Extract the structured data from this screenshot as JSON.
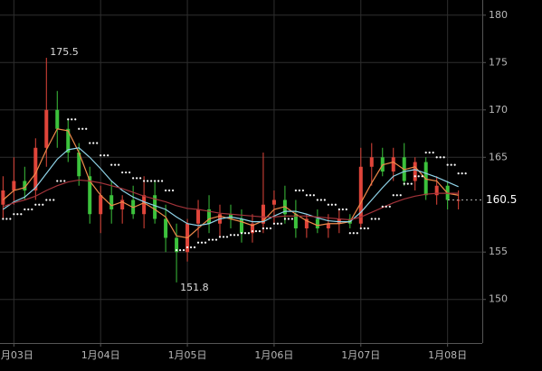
{
  "chart_data": {
    "type": "candlestick",
    "xlim": [
      2.84,
      8.4
    ],
    "xticks": [
      {
        "value": 3,
        "label": "1月03日"
      },
      {
        "value": 4,
        "label": "1月04日"
      },
      {
        "value": 5,
        "label": "1月05日"
      },
      {
        "value": 6,
        "label": "1月06日"
      },
      {
        "value": 7,
        "label": "1月07日"
      },
      {
        "value": 8,
        "label": "1月08日"
      }
    ],
    "ylim": [
      145.4,
      181.6
    ],
    "yticks": [
      150,
      155,
      165,
      170,
      175,
      180
    ],
    "grid": true,
    "up_color": "#e0453a",
    "down_color": "#3cc23c",
    "x": [
      2.875,
      3.0,
      3.125,
      3.25,
      3.375,
      3.5,
      3.625,
      3.75,
      3.875,
      4.0,
      4.125,
      4.25,
      4.375,
      4.5,
      4.625,
      4.75,
      4.875,
      5.0,
      5.125,
      5.25,
      5.375,
      5.5,
      5.625,
      5.75,
      5.875,
      6.0,
      6.125,
      6.25,
      6.375,
      6.5,
      6.625,
      6.75,
      6.875,
      7.0,
      7.125,
      7.25,
      7.375,
      7.5,
      7.625,
      7.75,
      7.875,
      8.0,
      8.125
    ],
    "open": [
      160,
      161.5,
      162.5,
      161.5,
      166,
      170,
      168,
      165.5,
      163,
      159,
      161,
      159.5,
      160.5,
      159,
      161,
      158.5,
      156.5,
      155,
      158,
      159.5,
      158,
      159,
      158.5,
      157,
      158,
      160,
      160.5,
      159,
      157.5,
      158.5,
      157.5,
      158,
      158.5,
      158,
      164,
      165,
      163.5,
      165,
      162.5,
      164.5,
      161,
      162,
      160.5
    ],
    "high": [
      163,
      165,
      164,
      167,
      175.5,
      172,
      169,
      166.5,
      164,
      162,
      162.5,
      161,
      162,
      163,
      162.5,
      160,
      158,
      158.5,
      160.5,
      161,
      160,
      160,
      159.5,
      159,
      165.5,
      161.5,
      162,
      160.5,
      159,
      159.5,
      159,
      159.5,
      159,
      166,
      166.5,
      166,
      166,
      166.5,
      165,
      165,
      163,
      162.5,
      161.5
    ],
    "low": [
      158.5,
      160,
      160.5,
      160.5,
      164,
      166,
      164.5,
      162,
      158,
      157,
      158,
      158,
      158.5,
      157.5,
      158,
      155,
      151.8,
      154,
      156.5,
      157,
      156.5,
      157.5,
      156,
      156,
      157,
      158,
      158,
      156.5,
      156.5,
      157,
      156.5,
      157,
      157.5,
      157.5,
      162,
      163,
      162.5,
      162,
      161.5,
      160.5,
      160,
      159.5,
      159.5
    ],
    "close": [
      161.5,
      162.5,
      161.5,
      166,
      170,
      168,
      165.5,
      163,
      159,
      161,
      159.5,
      160.5,
      159,
      161,
      158.5,
      156.5,
      155,
      158,
      159.5,
      158,
      159,
      158.5,
      157,
      158,
      160,
      160.5,
      159,
      157.5,
      158.5,
      157.5,
      158,
      158.5,
      158,
      164,
      165,
      163.5,
      165,
      162.5,
      164.5,
      161,
      162,
      160.5,
      160.5
    ],
    "series": [
      {
        "color": "#f08a4b",
        "values": [
          160.5,
          161.5,
          161.8,
          163.3,
          165.8,
          168,
          167.8,
          165.5,
          162.5,
          161,
          159.9,
          160.3,
          159.7,
          160.2,
          159.5,
          158.7,
          156.7,
          156.5,
          157.5,
          158.5,
          158.8,
          158.5,
          158.2,
          157.8,
          158.3,
          159.5,
          159.8,
          159,
          158.3,
          157.8,
          158,
          158,
          158.2,
          160.2,
          162.3,
          164.2,
          164.5,
          163.7,
          164,
          162.7,
          162.5,
          161.2,
          161
        ]
      },
      {
        "color": "#8fd3e8",
        "values": [
          159.5,
          160.3,
          160.8,
          161.8,
          163.3,
          164.8,
          165.8,
          166,
          165,
          163.8,
          162.5,
          161.5,
          160.8,
          160.3,
          159.9,
          159.5,
          158.7,
          158,
          157.8,
          158,
          158.5,
          158.7,
          158.5,
          158.2,
          158.2,
          158.8,
          159.3,
          159.3,
          159,
          158.6,
          158.3,
          158.2,
          158.2,
          159.2,
          160.5,
          161.8,
          163,
          163.5,
          163.7,
          163.3,
          162.9,
          162.4,
          161.9
        ]
      },
      {
        "color": "#a3333a",
        "values": [
          159.8,
          160.2,
          160.5,
          160.9,
          161.5,
          162,
          162.4,
          162.6,
          162.5,
          162.3,
          162,
          161.7,
          161.3,
          160.9,
          160.6,
          160.3,
          159.9,
          159.6,
          159.5,
          159.3,
          159.1,
          159,
          158.9,
          158.8,
          158.7,
          158.7,
          158.8,
          158.8,
          158.8,
          158.7,
          158.6,
          158.5,
          158.4,
          158.7,
          159.2,
          159.7,
          160.2,
          160.6,
          160.9,
          161.1,
          161.2,
          161.2,
          161.2
        ]
      }
    ],
    "sar": {
      "color": "#ffffff",
      "values": [
        158.5,
        159,
        159.5,
        160,
        160.5,
        162.5,
        169,
        168,
        166.5,
        165.2,
        164.2,
        163.4,
        162.8,
        162.5,
        162.5,
        161.5,
        155.2,
        155.5,
        156,
        156.3,
        156.6,
        156.8,
        157,
        157.2,
        157.5,
        158,
        158.5,
        161.5,
        161,
        160.5,
        160,
        159.5,
        157,
        157.5,
        158.5,
        159.8,
        161,
        162.2,
        163,
        165.5,
        165,
        164.2,
        163.3
      ]
    },
    "annotations": [
      {
        "x": 3.375,
        "value": 175.5
      },
      {
        "x": 4.875,
        "value": 151.8
      }
    ],
    "last_price": 160.5
  }
}
